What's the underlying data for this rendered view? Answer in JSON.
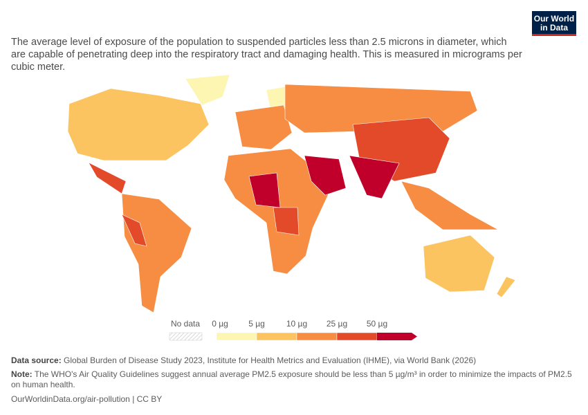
{
  "logo": {
    "line1": "Our World",
    "line2": "in Data"
  },
  "subtitle": "The average level of exposure of the population to suspended particles less than 2.5 microns in diameter, which are capable of penetrating deep into the respiratory tract and damaging health. This is measured in micrograms per cubic meter.",
  "legend": {
    "no_data": "No data",
    "bins": [
      {
        "label": "0 µg",
        "color": "#fdf5b2"
      },
      {
        "label": "5 µg",
        "color": "#fbc460"
      },
      {
        "label": "10 µg",
        "color": "#f68d43"
      },
      {
        "label": "25 µg",
        "color": "#e34a2a"
      },
      {
        "label": "50 µg",
        "color": "#c0002b"
      }
    ]
  },
  "footer": {
    "source_label": "Data source:",
    "source": "Global Burden of Disease Study 2023, Institute for Health Metrics and Evaluation (IHME), via World Bank (2026)",
    "note_label": "Note:",
    "note": "The WHO's Air Quality Guidelines suggest annual average PM2.5 exposure should be less than 5 µg/m³ in order to minimize the impacts of PM2.5 on human health.",
    "url": "OurWorldinData.org/air-pollution | CC BY"
  }
}
